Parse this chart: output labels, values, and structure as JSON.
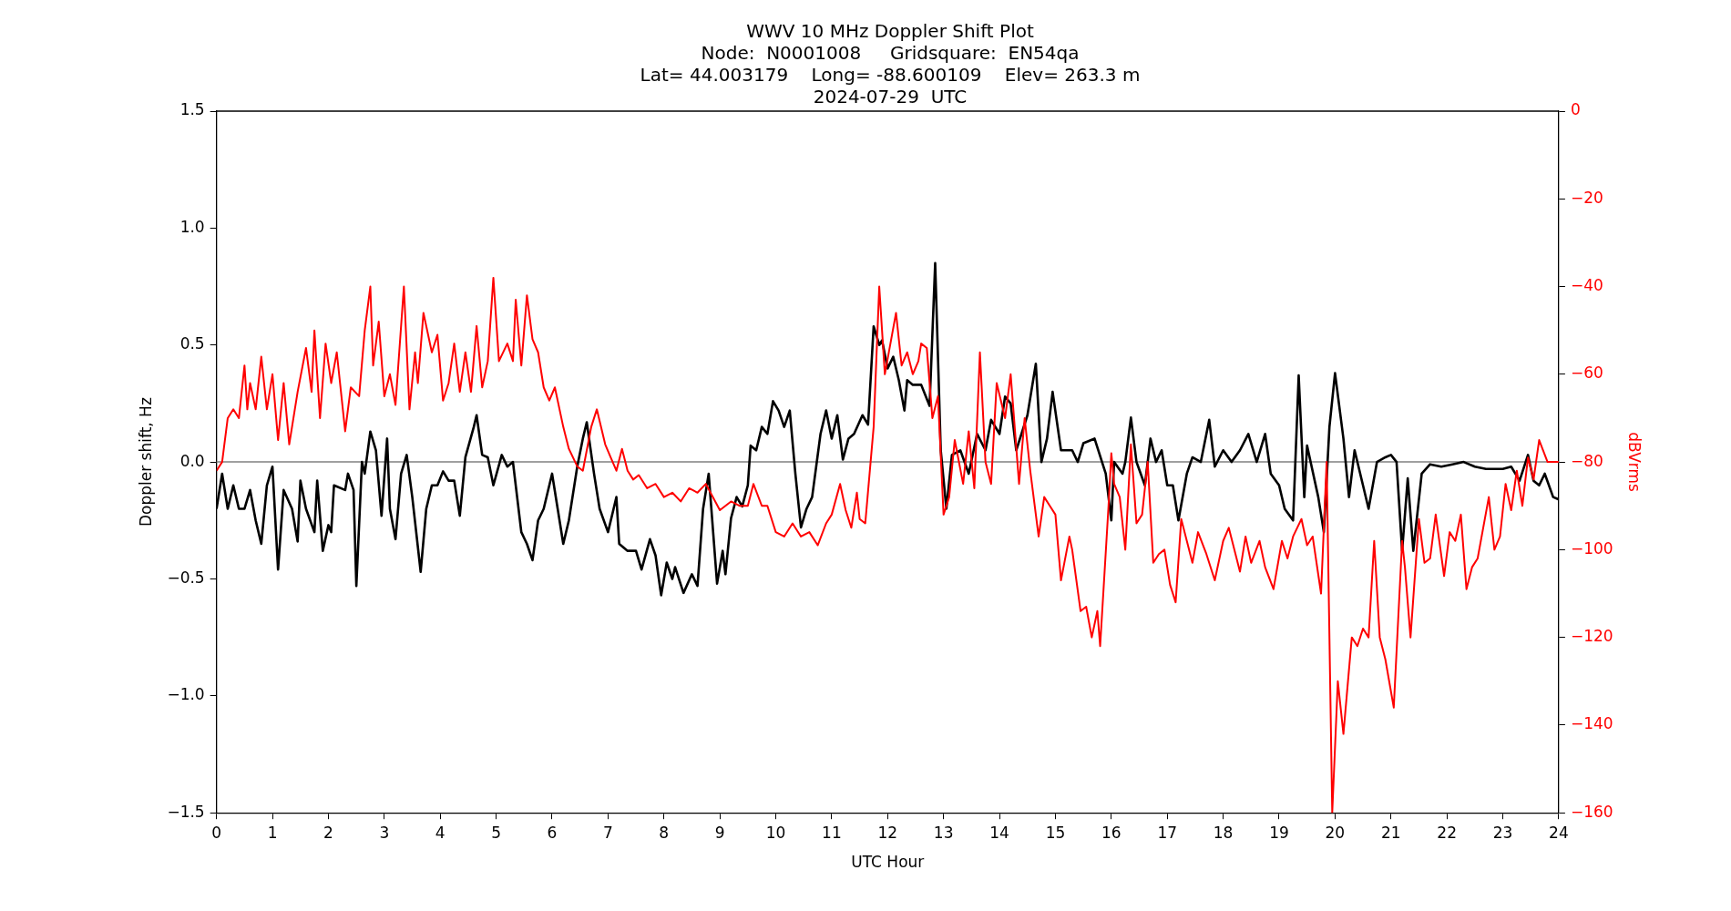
{
  "chart_data": {
    "type": "line",
    "title": "WWV 10 MHz Doppler Shift Plot",
    "subtitle": "Node:  N0001008     Gridsquare:  EN54qa\nLat= 44.003179    Long= -88.600109    Elev= 263.3 m\n2024-07-29  UTC",
    "xlabel": "UTC Hour",
    "ylabel": "Doppler shift, Hz",
    "y2label": "dBVrms",
    "xlim": [
      0,
      24
    ],
    "xticks": [
      0,
      1,
      2,
      3,
      4,
      5,
      6,
      7,
      8,
      9,
      10,
      11,
      12,
      13,
      14,
      15,
      16,
      17,
      18,
      19,
      20,
      21,
      22,
      23,
      24
    ],
    "ylim": [
      -1.5,
      1.5
    ],
    "yticks": [
      {
        "value": -1.5,
        "label": "−1.5"
      },
      {
        "value": -1.0,
        "label": "−1.0"
      },
      {
        "value": -0.5,
        "label": "−0.5"
      },
      {
        "value": 0,
        "label": "0.0"
      },
      {
        "value": 0.5,
        "label": "0.5"
      },
      {
        "value": 1.0,
        "label": "1.0"
      },
      {
        "value": 1.5,
        "label": "1.5"
      }
    ],
    "y2lim": [
      -160,
      0
    ],
    "y2ticks": [
      {
        "value": -160,
        "label": "−160"
      },
      {
        "value": -140,
        "label": "−140"
      },
      {
        "value": -120,
        "label": "−120"
      },
      {
        "value": -100,
        "label": "−100"
      },
      {
        "value": -80,
        "label": "−80"
      },
      {
        "value": -60,
        "label": "−60"
      },
      {
        "value": -40,
        "label": "−40"
      },
      {
        "value": -20,
        "label": "−20"
      },
      0
    ],
    "grid": false,
    "legend": false,
    "marker": "none",
    "line_style": "solid",
    "ref_lines": [
      {
        "axis": "y",
        "value": 0,
        "label": null,
        "color": "#808080"
      }
    ],
    "series": [
      {
        "color": "#000000",
        "axis": "y",
        "x": [
          0,
          0.1,
          0.2,
          0.3,
          0.4,
          0.5,
          0.6,
          0.7,
          0.8,
          0.9,
          1.0,
          1.1,
          1.2,
          1.35,
          1.45,
          1.5,
          1.6,
          1.75,
          1.8,
          1.9,
          2.0,
          2.05,
          2.1,
          2.3,
          2.35,
          2.45,
          2.5,
          2.6,
          2.65,
          2.75,
          2.85,
          2.95,
          3.05,
          3.1,
          3.2,
          3.3,
          3.4,
          3.5,
          3.65,
          3.75,
          3.85,
          3.95,
          4.05,
          4.15,
          4.25,
          4.35,
          4.45,
          4.6,
          4.65,
          4.75,
          4.85,
          4.95,
          5.1,
          5.2,
          5.3,
          5.45,
          5.55,
          5.65,
          5.75,
          5.85,
          6.0,
          6.1,
          6.2,
          6.3,
          6.45,
          6.55,
          6.62,
          6.75,
          6.85,
          7.0,
          7.1,
          7.15,
          7.2,
          7.35,
          7.5,
          7.6,
          7.75,
          7.85,
          7.95,
          8.05,
          8.15,
          8.2,
          8.35,
          8.5,
          8.6,
          8.7,
          8.8,
          8.95,
          9.05,
          9.1,
          9.2,
          9.3,
          9.4,
          9.5,
          9.55,
          9.65,
          9.75,
          9.85,
          9.95,
          10.05,
          10.15,
          10.25,
          10.35,
          10.45,
          10.55,
          10.65,
          10.8,
          10.9,
          11.0,
          11.1,
          11.2,
          11.3,
          11.4,
          11.55,
          11.65,
          11.75,
          11.85,
          11.9,
          12.0,
          12.1,
          12.2,
          12.3,
          12.35,
          12.45,
          12.6,
          12.75,
          12.85,
          12.95,
          13.05,
          13.15,
          13.3,
          13.45,
          13.6,
          13.75,
          13.85,
          14.0,
          14.1,
          14.2,
          14.3,
          14.5,
          14.65,
          14.75,
          14.85,
          14.95,
          15.1,
          15.2,
          15.3,
          15.4,
          15.5,
          15.7,
          15.9,
          16.0,
          16.05,
          16.2,
          16.25,
          16.35,
          16.45,
          16.6,
          16.7,
          16.8,
          16.9,
          17.0,
          17.1,
          17.2,
          17.35,
          17.45,
          17.6,
          17.75,
          17.85,
          18.0,
          18.15,
          18.3,
          18.45,
          18.6,
          18.75,
          18.85,
          19.0,
          19.1,
          19.25,
          19.35,
          19.45,
          19.5,
          19.7,
          19.8,
          19.9,
          20.0,
          20.15,
          20.25,
          20.35,
          20.5,
          20.6,
          20.75,
          20.9,
          21.0,
          21.1,
          21.2,
          21.3,
          21.4,
          21.55,
          21.7,
          21.9,
          22.1,
          22.3,
          22.5,
          22.7,
          23.0,
          23.15,
          23.3,
          23.45,
          23.55,
          23.65,
          23.75,
          23.9,
          24.0
        ],
        "values": [
          -0.2,
          -0.05,
          -0.2,
          -0.1,
          -0.2,
          -0.2,
          -0.12,
          -0.25,
          -0.35,
          -0.1,
          -0.02,
          -0.46,
          -0.12,
          -0.2,
          -0.34,
          -0.08,
          -0.2,
          -0.3,
          -0.08,
          -0.38,
          -0.27,
          -0.3,
          -0.1,
          -0.12,
          -0.05,
          -0.12,
          -0.53,
          0.0,
          -0.05,
          0.13,
          0.05,
          -0.23,
          0.1,
          -0.2,
          -0.33,
          -0.05,
          0.03,
          -0.15,
          -0.47,
          -0.2,
          -0.1,
          -0.1,
          -0.04,
          -0.08,
          -0.08,
          -0.23,
          0.02,
          0.15,
          0.2,
          0.03,
          0.02,
          -0.1,
          0.03,
          -0.02,
          0.0,
          -0.3,
          -0.35,
          -0.42,
          -0.25,
          -0.2,
          -0.05,
          -0.2,
          -0.35,
          -0.25,
          -0.02,
          0.1,
          0.17,
          -0.05,
          -0.2,
          -0.3,
          -0.2,
          -0.15,
          -0.35,
          -0.38,
          -0.38,
          -0.46,
          -0.33,
          -0.4,
          -0.57,
          -0.43,
          -0.5,
          -0.45,
          -0.56,
          -0.48,
          -0.53,
          -0.2,
          -0.05,
          -0.52,
          -0.38,
          -0.48,
          -0.24,
          -0.15,
          -0.19,
          -0.1,
          0.07,
          0.05,
          0.15,
          0.12,
          0.26,
          0.22,
          0.15,
          0.22,
          -0.05,
          -0.28,
          -0.2,
          -0.15,
          0.12,
          0.22,
          0.1,
          0.2,
          0.01,
          0.1,
          0.12,
          0.2,
          0.16,
          0.58,
          0.5,
          0.52,
          0.4,
          0.45,
          0.35,
          0.22,
          0.35,
          0.33,
          0.33,
          0.24,
          0.85,
          0.05,
          -0.2,
          0.03,
          0.05,
          -0.05,
          0.12,
          0.05,
          0.18,
          0.12,
          0.28,
          0.25,
          0.05,
          0.2,
          0.42,
          0.0,
          0.1,
          0.3,
          0.05,
          0.05,
          0.05,
          0.0,
          0.08,
          0.1,
          -0.05,
          -0.25,
          0.0,
          -0.05,
          0.0,
          0.19,
          0.0,
          -0.1,
          0.1,
          0.0,
          0.05,
          -0.1,
          -0.1,
          -0.25,
          -0.05,
          0.02,
          0.0,
          0.18,
          -0.02,
          0.05,
          0.0,
          0.05,
          0.12,
          0.0,
          0.12,
          -0.05,
          -0.1,
          -0.2,
          -0.25,
          0.37,
          -0.15,
          0.07,
          -0.15,
          -0.3,
          0.15,
          0.38,
          0.1,
          -0.15,
          0.05,
          -0.1,
          -0.2,
          0.0,
          0.02,
          0.03,
          0.0,
          -0.38,
          -0.07,
          -0.38,
          -0.05,
          -0.01,
          -0.02,
          -0.01,
          0.0,
          -0.02,
          -0.03,
          -0.03,
          -0.02,
          -0.08,
          0.03,
          -0.08,
          -0.1,
          -0.05,
          -0.15,
          -0.16
        ]
      },
      {
        "color": "#ff0000",
        "axis": "y2",
        "x": [
          0,
          0.1,
          0.2,
          0.3,
          0.4,
          0.5,
          0.55,
          0.6,
          0.7,
          0.8,
          0.9,
          1.0,
          1.1,
          1.2,
          1.3,
          1.45,
          1.6,
          1.7,
          1.75,
          1.85,
          1.95,
          2.05,
          2.15,
          2.3,
          2.4,
          2.55,
          2.65,
          2.75,
          2.8,
          2.9,
          3.0,
          3.1,
          3.2,
          3.35,
          3.45,
          3.55,
          3.6,
          3.7,
          3.85,
          3.95,
          4.05,
          4.15,
          4.25,
          4.35,
          4.45,
          4.55,
          4.65,
          4.75,
          4.85,
          4.95,
          5.05,
          5.2,
          5.3,
          5.35,
          5.45,
          5.55,
          5.65,
          5.75,
          5.85,
          5.95,
          6.05,
          6.2,
          6.3,
          6.45,
          6.55,
          6.7,
          6.8,
          6.95,
          7.05,
          7.15,
          7.25,
          7.35,
          7.45,
          7.55,
          7.7,
          7.85,
          8.0,
          8.15,
          8.3,
          8.45,
          8.6,
          8.75,
          9.0,
          9.2,
          9.35,
          9.5,
          9.6,
          9.75,
          9.85,
          10.0,
          10.15,
          10.3,
          10.45,
          10.6,
          10.75,
          10.9,
          11.0,
          11.15,
          11.25,
          11.35,
          11.45,
          11.5,
          11.6,
          11.75,
          11.85,
          11.95,
          12.05,
          12.15,
          12.25,
          12.35,
          12.45,
          12.55,
          12.6,
          12.7,
          12.8,
          12.9,
          13.0,
          13.1,
          13.2,
          13.35,
          13.45,
          13.55,
          13.65,
          13.75,
          13.85,
          13.95,
          14.1,
          14.2,
          14.35,
          14.45,
          14.55,
          14.7,
          14.8,
          14.9,
          15.0,
          15.1,
          15.25,
          15.3,
          15.45,
          15.55,
          15.65,
          15.75,
          15.8,
          15.95,
          16.0,
          16.05,
          16.15,
          16.25,
          16.35,
          16.45,
          16.55,
          16.65,
          16.75,
          16.85,
          16.95,
          17.05,
          17.15,
          17.25,
          17.35,
          17.45,
          17.55,
          17.7,
          17.85,
          18.0,
          18.1,
          18.3,
          18.4,
          18.5,
          18.65,
          18.75,
          18.9,
          19.05,
          19.15,
          19.25,
          19.4,
          19.5,
          19.6,
          19.75,
          19.85,
          19.95,
          20.05,
          20.15,
          20.3,
          20.4,
          20.5,
          20.6,
          20.7,
          20.8,
          20.9,
          21.05,
          21.2,
          21.25,
          21.35,
          21.5,
          21.6,
          21.7,
          21.8,
          21.95,
          22.05,
          22.15,
          22.25,
          22.35,
          22.45,
          22.55,
          22.75,
          22.85,
          22.95,
          23.05,
          23.15,
          23.25,
          23.35,
          23.45,
          23.55,
          23.65,
          23.8,
          24.0
        ],
        "values": [
          -82,
          -80,
          -70,
          -68,
          -70,
          -58,
          -68,
          -62,
          -68,
          -56,
          -68,
          -60,
          -75,
          -62,
          -76,
          -64,
          -54,
          -64,
          -50,
          -70,
          -53,
          -62,
          -55,
          -73,
          -63,
          -65,
          -50,
          -40,
          -58,
          -48,
          -65,
          -60,
          -67,
          -40,
          -68,
          -55,
          -62,
          -46,
          -55,
          -51,
          -66,
          -62,
          -53,
          -64,
          -55,
          -64,
          -49,
          -63,
          -57,
          -38,
          -57,
          -53,
          -57,
          -43,
          -58,
          -42,
          -52,
          -55,
          -63,
          -66,
          -63,
          -72,
          -77,
          -81,
          -82,
          -72,
          -68,
          -76,
          -79,
          -82,
          -77,
          -82,
          -84,
          -83,
          -86,
          -85,
          -88,
          -87,
          -89,
          -86,
          -87,
          -85,
          -91,
          -89,
          -90,
          -90,
          -85,
          -90,
          -90,
          -96,
          -97,
          -94,
          -97,
          -96,
          -99,
          -94,
          -92,
          -85,
          -91,
          -95,
          -87,
          -93,
          -94,
          -72,
          -40,
          -60,
          -53,
          -46,
          -58,
          -55,
          -60,
          -57,
          -53,
          -54,
          -70,
          -65,
          -92,
          -88,
          -75,
          -85,
          -73,
          -86,
          -55,
          -80,
          -85,
          -62,
          -70,
          -60,
          -85,
          -70,
          -82,
          -97,
          -88,
          -90,
          -92,
          -107,
          -97,
          -100,
          -114,
          -113,
          -120,
          -114,
          -122,
          -90,
          -78,
          -85,
          -88,
          -100,
          -76,
          -94,
          -92,
          -80,
          -103,
          -101,
          -100,
          -108,
          -112,
          -93,
          -98,
          -103,
          -96,
          -101,
          -107,
          -98,
          -95,
          -105,
          -97,
          -103,
          -98,
          -104,
          -109,
          -98,
          -102,
          -97,
          -93,
          -99,
          -97,
          -110,
          -80,
          -160,
          -130,
          -142,
          -120,
          -122,
          -118,
          -120,
          -98,
          -120,
          -125,
          -136,
          -98,
          -104,
          -120,
          -93,
          -103,
          -102,
          -92,
          -106,
          -96,
          -98,
          -92,
          -109,
          -104,
          -102,
          -88,
          -100,
          -97,
          -85,
          -91,
          -82,
          -90,
          -79,
          -84,
          -75,
          -80,
          -80
        ]
      }
    ]
  }
}
